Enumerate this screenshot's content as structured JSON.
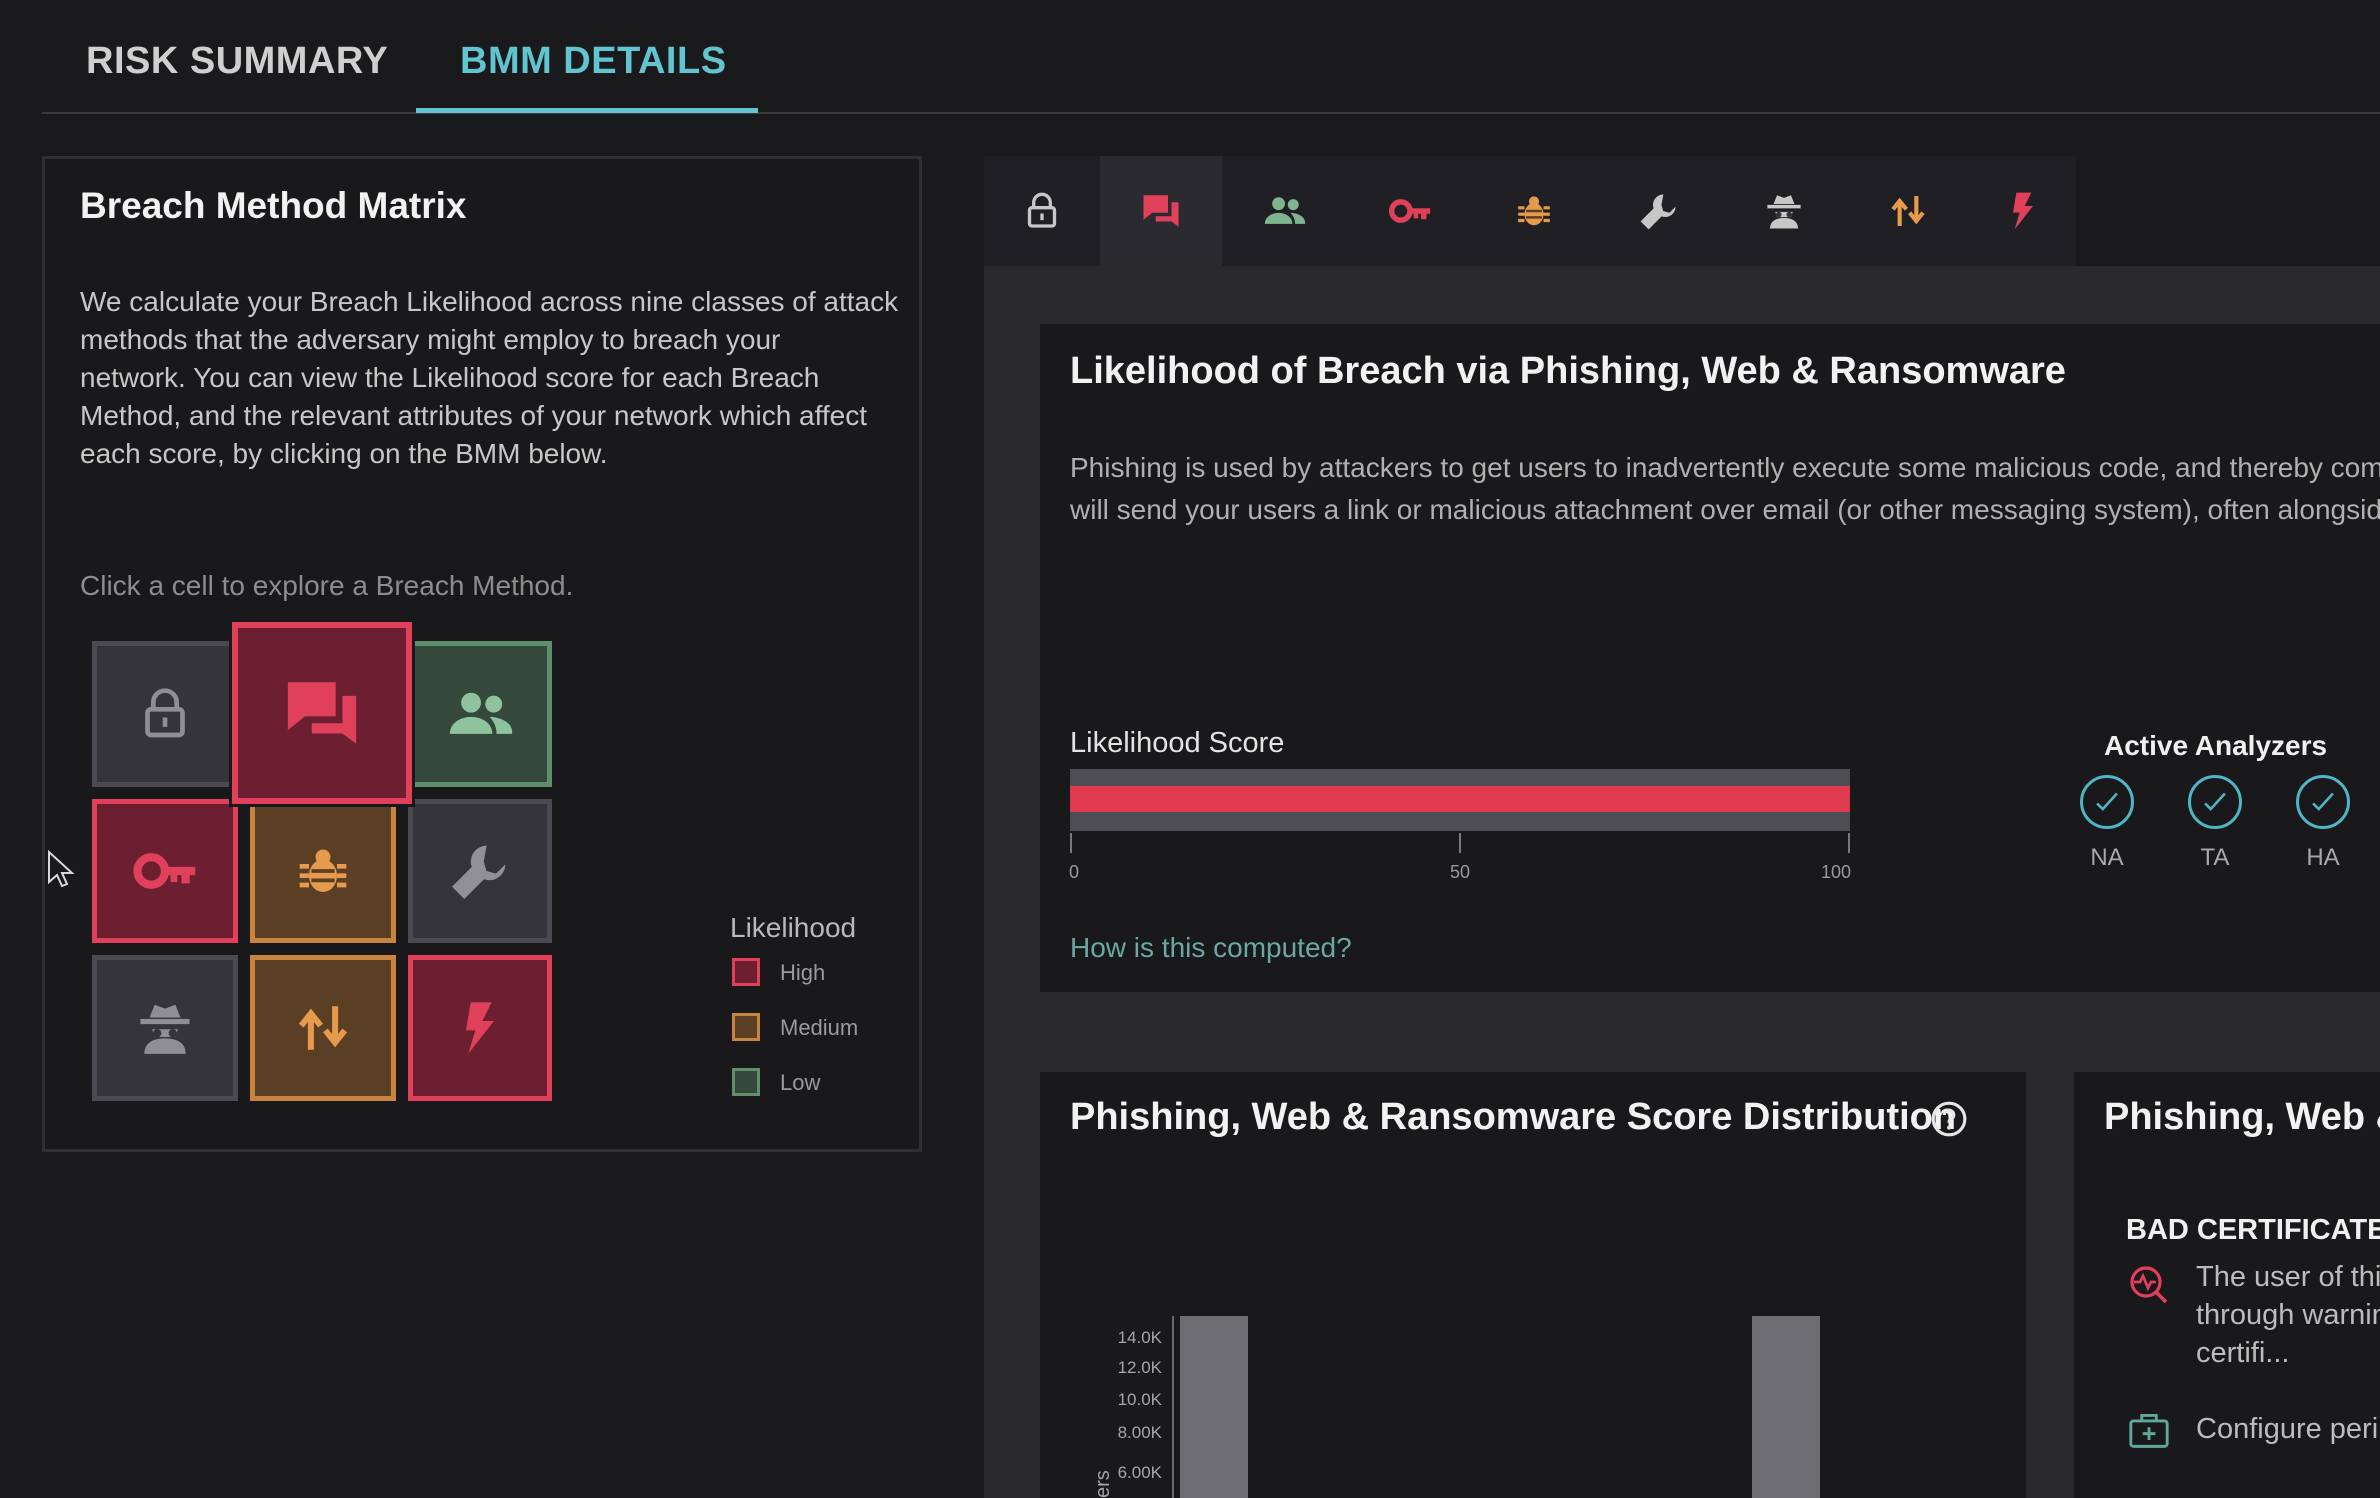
{
  "tabs": [
    {
      "label": "RISK SUMMARY"
    },
    {
      "label": "BMM DETAILS"
    }
  ],
  "matrix_panel": {
    "title": "Breach Method Matrix",
    "description_lines": [
      "We calculate your Breach Likelihood across nine classes of attack",
      "methods that the adversary might employ to breach your",
      "network. You can view the Likelihood score for each Breach",
      "Method, and the relevant attributes of your network which affect",
      "each score, by clicking on the BMM below."
    ],
    "hint": "Click a cell to explore a Breach Method.",
    "cells": [
      {
        "icon": "lock-icon",
        "level": "gray"
      },
      {
        "icon": "chat-icon",
        "level": "high"
      },
      {
        "icon": "users-icon",
        "level": "low"
      },
      {
        "icon": "key-icon",
        "level": "high"
      },
      {
        "icon": "bug-icon",
        "level": "medium"
      },
      {
        "icon": "wrench-icon",
        "level": "gray"
      },
      {
        "icon": "spy-icon",
        "level": "gray"
      },
      {
        "icon": "swap-arrows-icon",
        "level": "medium"
      },
      {
        "icon": "bolt-icon",
        "level": "high"
      }
    ],
    "legend": {
      "title": "Likelihood",
      "items": [
        {
          "label": "High",
          "color": "#e0405a"
        },
        {
          "label": "Medium",
          "color": "#c8843f"
        },
        {
          "label": "Low",
          "color": "#5e8e6c"
        }
      ]
    }
  },
  "toolbar": {
    "icons": [
      "lock-icon",
      "chat-icon",
      "users-icon",
      "key-icon",
      "bug-icon",
      "wrench-icon",
      "spy-icon",
      "swap-arrows-icon",
      "bolt-icon"
    ],
    "active": "chat-icon"
  },
  "likelihood_card": {
    "title": "Likelihood of Breach via Phishing, Web & Ransomware",
    "description_lines": [
      "Phishing is used by attackers to get users to inadvertently execute some malicious code, and thereby compr",
      "will send your users a link or malicious attachment over email (or other messaging system), often alongside"
    ],
    "score_label": "Likelihood Score",
    "score_value": 100,
    "score_scale": [
      "0",
      "50",
      "100"
    ],
    "link": "How is this computed?",
    "analyzers_title": "Active Analyzers",
    "analyzers": [
      "NA",
      "TA",
      "HA"
    ]
  },
  "distribution_card": {
    "title": "Phishing, Web & Ransomware Score Distribution",
    "y_ticks": [
      "14.0K",
      "12.0K",
      "10.0K",
      "8.00K",
      "6.00K"
    ],
    "y_axis_label_fragment": "ers"
  },
  "side_card": {
    "title": "Phishing, Web &",
    "item_title": "BAD CERTIFICATE C",
    "item_lines": [
      "The user of this",
      "through warnin",
      "certifi..."
    ],
    "action": "Configure perin"
  },
  "colors": {
    "accent": "#62c4cf",
    "high": "#e0405a",
    "medium": "#c8843f",
    "low": "#5e8e6c"
  }
}
